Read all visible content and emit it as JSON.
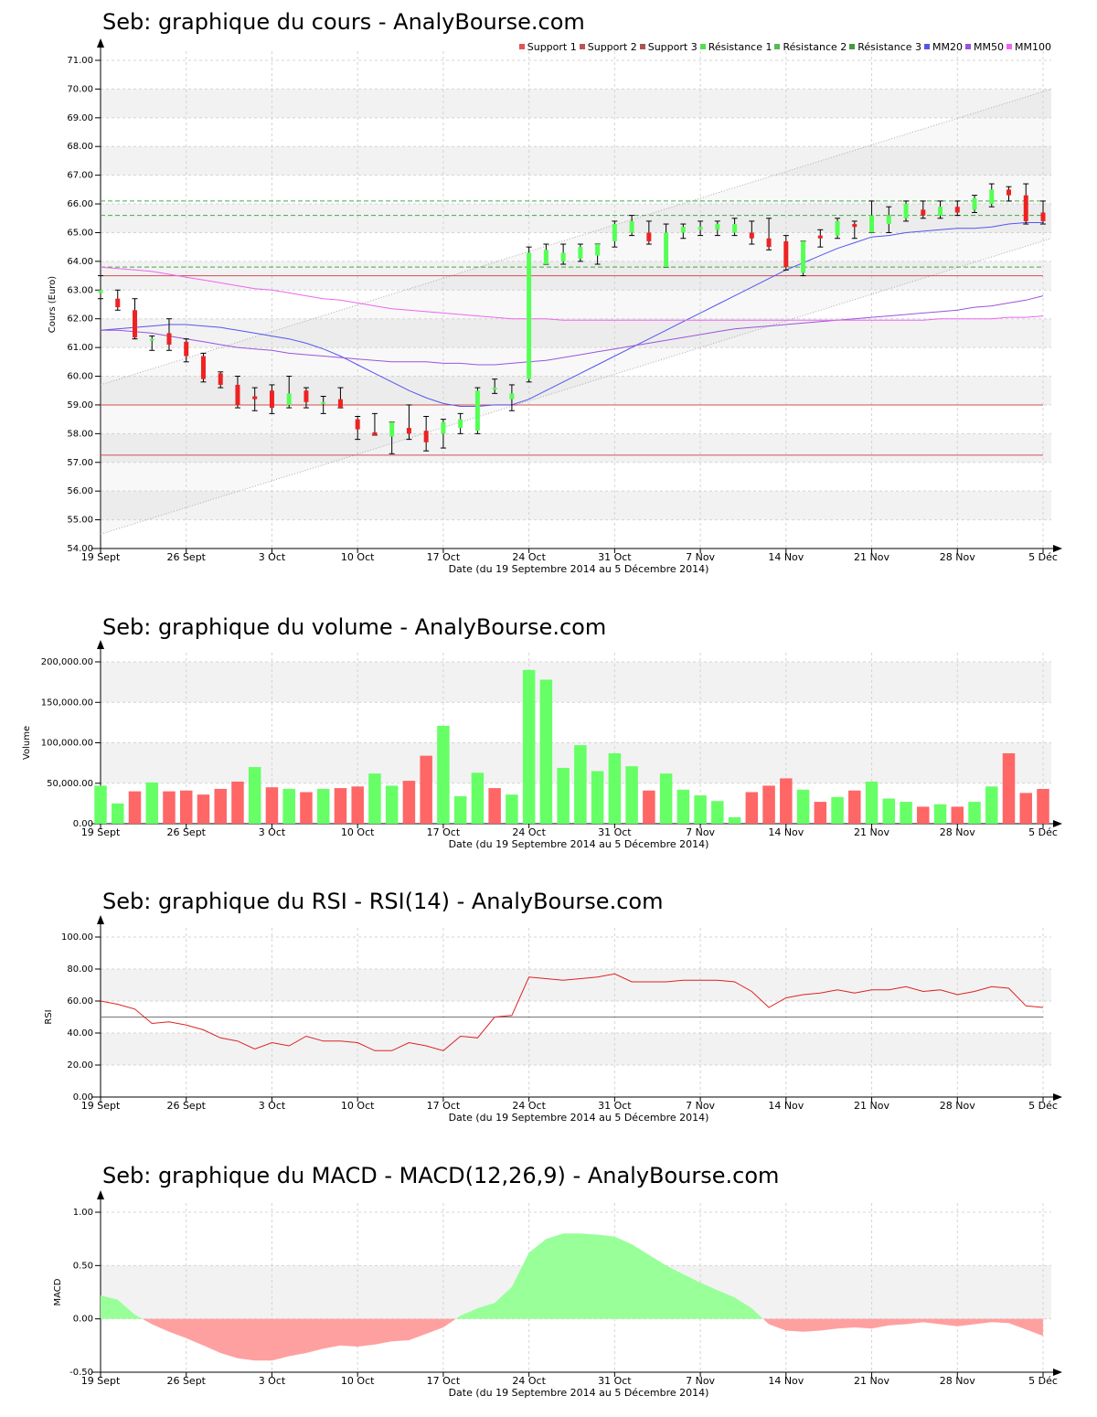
{
  "colors": {
    "up": "#55ff55",
    "down": "#ee2222",
    "up_bar": "#66ff66",
    "down_bar": "#ff6666",
    "band": "#f2f2f2",
    "grid": "#d4d4d4",
    "mm20": "#5555ee",
    "mm50": "#9955dd",
    "mm100": "#ee66ee",
    "support": "#d05050",
    "resistance": "#44aa44",
    "rsi": "#dd2222",
    "macd_pos": "#99ff99",
    "macd_neg": "#ffa0a0",
    "channel": "#aaaaaa"
  },
  "price": {
    "title": "Seb: graphique du cours - AnalyBourse.com",
    "legend": [
      {
        "label": "Support 1",
        "color": "#e05555"
      },
      {
        "label": "Support 2",
        "color": "#bb5555"
      },
      {
        "label": "Support 3",
        "color": "#aa5555"
      },
      {
        "label": "Résistance 1",
        "color": "#55dd55"
      },
      {
        "label": "Résistance 2",
        "color": "#55bb55"
      },
      {
        "label": "Résistance 3",
        "color": "#449944"
      },
      {
        "label": "MM20",
        "color": "#5555ee"
      },
      {
        "label": "MM50",
        "color": "#9955dd"
      },
      {
        "label": "MM100",
        "color": "#ee66ee"
      }
    ]
  },
  "volume": {
    "title": "Seb: graphique du volume - AnalyBourse.com"
  },
  "rsi": {
    "title": "Seb: graphique du RSI - RSI(14) - AnalyBourse.com"
  },
  "macd": {
    "title": "Seb: graphique du MACD - MACD(12,26,9) - AnalyBourse.com"
  },
  "chart_data": [
    {
      "type": "candlestick",
      "title": "Seb: graphique du cours - AnalyBourse.com",
      "xlabel": "Date (du 19 Septembre 2014 au 5 Décembre 2014)",
      "ylabel": "Cours (Euro)",
      "ylim": [
        54,
        71
      ],
      "yticks": [
        "54.00",
        "55.00",
        "56.00",
        "57.00",
        "58.00",
        "59.00",
        "60.00",
        "61.00",
        "62.00",
        "63.00",
        "64.00",
        "65.00",
        "66.00",
        "67.00",
        "68.00",
        "69.00",
        "70.00",
        "71.00"
      ],
      "xticks": [
        {
          "index": 0,
          "label": "19 Sept"
        },
        {
          "index": 5,
          "label": "26 Sept"
        },
        {
          "index": 10,
          "label": "3 Oct"
        },
        {
          "index": 15,
          "label": "10 Oct"
        },
        {
          "index": 20,
          "label": "17 Oct"
        },
        {
          "index": 25,
          "label": "24 Oct"
        },
        {
          "index": 30,
          "label": "31 Oct"
        },
        {
          "index": 35,
          "label": "7 Nov"
        },
        {
          "index": 40,
          "label": "14 Nov"
        },
        {
          "index": 45,
          "label": "21 Nov"
        },
        {
          "index": 50,
          "label": "28 Nov"
        },
        {
          "index": 55,
          "label": "5 Déc"
        }
      ],
      "grid": true,
      "legend_position": "top-right",
      "candles": [
        {
          "o": 62.9,
          "h": 63.5,
          "l": 62.7,
          "c": 63.0
        },
        {
          "o": 62.7,
          "h": 63.0,
          "l": 62.3,
          "c": 62.4
        },
        {
          "o": 62.3,
          "h": 62.7,
          "l": 61.3,
          "c": 61.35
        },
        {
          "o": 61.3,
          "h": 61.4,
          "l": 60.9,
          "c": 61.3
        },
        {
          "o": 61.5,
          "h": 62.0,
          "l": 60.9,
          "c": 61.1
        },
        {
          "o": 61.2,
          "h": 61.3,
          "l": 60.5,
          "c": 60.7
        },
        {
          "o": 60.7,
          "h": 60.8,
          "l": 59.8,
          "c": 59.9
        },
        {
          "o": 60.1,
          "h": 60.15,
          "l": 59.6,
          "c": 59.7
        },
        {
          "o": 59.7,
          "h": 60.0,
          "l": 58.9,
          "c": 59.0
        },
        {
          "o": 59.3,
          "h": 59.6,
          "l": 58.8,
          "c": 59.2
        },
        {
          "o": 59.5,
          "h": 59.7,
          "l": 58.7,
          "c": 58.9
        },
        {
          "o": 59.0,
          "h": 60.0,
          "l": 58.9,
          "c": 59.4
        },
        {
          "o": 59.5,
          "h": 59.6,
          "l": 58.9,
          "c": 59.1
        },
        {
          "o": 59.1,
          "h": 59.3,
          "l": 58.7,
          "c": 59.1
        },
        {
          "o": 59.2,
          "h": 59.6,
          "l": 58.9,
          "c": 58.9
        },
        {
          "o": 58.5,
          "h": 58.6,
          "l": 57.8,
          "c": 58.15
        },
        {
          "o": 58.05,
          "h": 58.7,
          "l": 57.95,
          "c": 57.95
        },
        {
          "o": 57.9,
          "h": 58.4,
          "l": 57.3,
          "c": 58.4
        },
        {
          "o": 58.2,
          "h": 59.0,
          "l": 57.8,
          "c": 58.0
        },
        {
          "o": 58.1,
          "h": 58.6,
          "l": 57.4,
          "c": 57.7
        },
        {
          "o": 58.0,
          "h": 58.5,
          "l": 57.5,
          "c": 58.4
        },
        {
          "o": 58.2,
          "h": 58.7,
          "l": 58.0,
          "c": 58.5
        },
        {
          "o": 58.1,
          "h": 59.6,
          "l": 58.0,
          "c": 59.5
        },
        {
          "o": 59.6,
          "h": 59.9,
          "l": 59.4,
          "c": 59.6
        },
        {
          "o": 59.2,
          "h": 59.7,
          "l": 58.8,
          "c": 59.4
        },
        {
          "o": 59.9,
          "h": 64.5,
          "l": 59.8,
          "c": 64.3
        },
        {
          "o": 63.9,
          "h": 64.6,
          "l": 63.9,
          "c": 64.4
        },
        {
          "o": 64.0,
          "h": 64.6,
          "l": 63.9,
          "c": 64.3
        },
        {
          "o": 64.1,
          "h": 64.6,
          "l": 64.0,
          "c": 64.5
        },
        {
          "o": 64.2,
          "h": 64.6,
          "l": 63.9,
          "c": 64.6
        },
        {
          "o": 64.7,
          "h": 65.4,
          "l": 64.5,
          "c": 65.3
        },
        {
          "o": 65.0,
          "h": 65.6,
          "l": 64.9,
          "c": 65.4
        },
        {
          "o": 65.0,
          "h": 65.4,
          "l": 64.6,
          "c": 64.7
        },
        {
          "o": 63.8,
          "h": 65.3,
          "l": 63.8,
          "c": 65.0
        },
        {
          "o": 65.0,
          "h": 65.3,
          "l": 64.8,
          "c": 65.2
        },
        {
          "o": 65.1,
          "h": 65.4,
          "l": 64.9,
          "c": 65.2
        },
        {
          "o": 65.1,
          "h": 65.4,
          "l": 64.9,
          "c": 65.3
        },
        {
          "o": 65.0,
          "h": 65.5,
          "l": 64.9,
          "c": 65.3
        },
        {
          "o": 65.0,
          "h": 65.4,
          "l": 64.6,
          "c": 64.8
        },
        {
          "o": 64.8,
          "h": 65.5,
          "l": 64.4,
          "c": 64.5
        },
        {
          "o": 64.7,
          "h": 64.9,
          "l": 63.7,
          "c": 63.8
        },
        {
          "o": 63.6,
          "h": 64.7,
          "l": 63.5,
          "c": 64.7
        },
        {
          "o": 64.9,
          "h": 65.1,
          "l": 64.5,
          "c": 64.8
        },
        {
          "o": 64.9,
          "h": 65.5,
          "l": 64.8,
          "c": 65.4
        },
        {
          "o": 65.3,
          "h": 65.4,
          "l": 64.8,
          "c": 65.2
        },
        {
          "o": 65.0,
          "h": 66.1,
          "l": 65.0,
          "c": 65.6
        },
        {
          "o": 65.3,
          "h": 65.9,
          "l": 65.0,
          "c": 65.6
        },
        {
          "o": 65.5,
          "h": 66.1,
          "l": 65.4,
          "c": 66.0
        },
        {
          "o": 65.8,
          "h": 66.1,
          "l": 65.5,
          "c": 65.6
        },
        {
          "o": 65.6,
          "h": 66.1,
          "l": 65.5,
          "c": 65.9
        },
        {
          "o": 65.9,
          "h": 66.1,
          "l": 65.6,
          "c": 65.7
        },
        {
          "o": 65.8,
          "h": 66.3,
          "l": 65.7,
          "c": 66.2
        },
        {
          "o": 66.0,
          "h": 66.7,
          "l": 65.9,
          "c": 66.5
        },
        {
          "o": 66.5,
          "h": 66.6,
          "l": 66.1,
          "c": 66.3
        },
        {
          "o": 66.3,
          "h": 66.7,
          "l": 65.3,
          "c": 65.4
        },
        {
          "o": 65.7,
          "h": 66.1,
          "l": 65.3,
          "c": 65.4
        }
      ],
      "support_levels": [
        63.5,
        59.0,
        57.25
      ],
      "resistance_levels": [
        66.1,
        65.6,
        63.8
      ],
      "channel": {
        "upper": [
          59.7,
          70.0
        ],
        "lower": [
          54.5,
          64.8
        ]
      },
      "series": [
        {
          "name": "MM20",
          "values": [
            61.6,
            61.65,
            61.7,
            61.75,
            61.8,
            61.8,
            61.75,
            61.7,
            61.6,
            61.5,
            61.4,
            61.3,
            61.15,
            60.95,
            60.7,
            60.4,
            60.1,
            59.8,
            59.5,
            59.25,
            59.05,
            58.95,
            58.95,
            59.0,
            59.0,
            59.2,
            59.5,
            59.8,
            60.1,
            60.4,
            60.7,
            61.0,
            61.3,
            61.6,
            61.9,
            62.2,
            62.5,
            62.8,
            63.1,
            63.4,
            63.7,
            63.95,
            64.2,
            64.45,
            64.65,
            64.85,
            64.9,
            65.0,
            65.05,
            65.1,
            65.15,
            65.15,
            65.2,
            65.3,
            65.35,
            65.35
          ]
        },
        {
          "name": "MM50",
          "values": [
            61.6,
            61.6,
            61.55,
            61.5,
            61.4,
            61.3,
            61.2,
            61.1,
            61.0,
            60.95,
            60.9,
            60.8,
            60.75,
            60.7,
            60.65,
            60.6,
            60.55,
            60.5,
            60.5,
            60.5,
            60.45,
            60.45,
            60.4,
            60.4,
            60.45,
            60.5,
            60.55,
            60.65,
            60.75,
            60.85,
            60.95,
            61.05,
            61.15,
            61.25,
            61.35,
            61.45,
            61.55,
            61.65,
            61.7,
            61.75,
            61.8,
            61.85,
            61.9,
            61.95,
            62.0,
            62.05,
            62.1,
            62.15,
            62.2,
            62.25,
            62.3,
            62.4,
            62.45,
            62.55,
            62.65,
            62.8
          ]
        },
        {
          "name": "MM100",
          "values": [
            63.8,
            63.75,
            63.7,
            63.65,
            63.55,
            63.45,
            63.35,
            63.25,
            63.15,
            63.05,
            63.0,
            62.9,
            62.8,
            62.7,
            62.65,
            62.55,
            62.45,
            62.35,
            62.3,
            62.25,
            62.2,
            62.15,
            62.1,
            62.05,
            62.0,
            62.0,
            62.0,
            61.95,
            61.95,
            61.95,
            61.95,
            61.95,
            61.95,
            61.95,
            61.95,
            61.95,
            61.95,
            61.95,
            61.95,
            61.95,
            61.95,
            61.95,
            61.95,
            61.95,
            61.95,
            61.95,
            61.95,
            61.95,
            61.95,
            62.0,
            62.0,
            62.0,
            62.0,
            62.05,
            62.05,
            62.1
          ]
        }
      ]
    },
    {
      "type": "bar",
      "title": "Seb: graphique du volume - AnalyBourse.com",
      "xlabel": "Date (du 19 Septembre 2014 au 5 Décembre 2014)",
      "ylabel": "Volume",
      "ylim": [
        0,
        200000
      ],
      "yticks": [
        "0.00",
        "50,000.00",
        "100,000.00",
        "150,000.00",
        "200,000.00"
      ],
      "grid": true,
      "values": [
        47000,
        25000,
        40000,
        51000,
        40000,
        41000,
        36000,
        43000,
        52000,
        70000,
        45000,
        43000,
        39000,
        43000,
        44000,
        46000,
        62000,
        47000,
        53000,
        84000,
        121000,
        34000,
        63000,
        44000,
        36000,
        190000,
        178000,
        69000,
        97000,
        65000,
        87000,
        71000,
        41000,
        62000,
        42000,
        35000,
        28000,
        8000,
        39000,
        47000,
        56000,
        42000,
        27000,
        33000,
        41000,
        52000,
        31000,
        27000,
        21000,
        24000,
        21000,
        27000,
        46000,
        87000,
        38000,
        43000
      ],
      "direction": [
        "up",
        "up",
        "down",
        "up",
        "down",
        "down",
        "down",
        "down",
        "down",
        "up",
        "down",
        "up",
        "down",
        "up",
        "down",
        "down",
        "up",
        "up",
        "down",
        "down",
        "up",
        "up",
        "up",
        "down",
        "up",
        "up",
        "up",
        "up",
        "up",
        "up",
        "up",
        "up",
        "down",
        "up",
        "up",
        "up",
        "up",
        "up",
        "down",
        "down",
        "down",
        "up",
        "down",
        "up",
        "down",
        "up",
        "up",
        "up",
        "down",
        "up",
        "down",
        "up",
        "up",
        "down",
        "down",
        "down"
      ]
    },
    {
      "type": "line",
      "title": "Seb: graphique du RSI - RSI(14) - AnalyBourse.com",
      "xlabel": "Date (du 19 Septembre 2014 au 5 Décembre 2014)",
      "ylabel": "RSI",
      "ylim": [
        0,
        100
      ],
      "yticks": [
        "0.00",
        "20.00",
        "40.00",
        "60.00",
        "80.00",
        "100.00"
      ],
      "reference_line": 50,
      "grid": true,
      "values": [
        60,
        58,
        55,
        46,
        47,
        45,
        42,
        37,
        35,
        30,
        34,
        32,
        38,
        35,
        35,
        34,
        29,
        29,
        34,
        32,
        29,
        38,
        37,
        50,
        51,
        75,
        74,
        73,
        74,
        75,
        77,
        72,
        72,
        72,
        73,
        73,
        73,
        72,
        66,
        56,
        62,
        64,
        65,
        67,
        65,
        67,
        67,
        69,
        66,
        67,
        64,
        66,
        69,
        68,
        57,
        56
      ]
    },
    {
      "type": "area",
      "title": "Seb: graphique du MACD - MACD(12,26,9) - AnalyBourse.com",
      "xlabel": "Date (du 19 Septembre 2014 au 5 Décembre 2014)",
      "ylabel": "MACD",
      "ylim": [
        -0.5,
        1.0
      ],
      "yticks": [
        "-0.50",
        "0.00",
        "0.50",
        "1.00"
      ],
      "grid": true,
      "values": [
        0.22,
        0.18,
        0.04,
        -0.05,
        -0.12,
        -0.18,
        -0.25,
        -0.32,
        -0.37,
        -0.39,
        -0.39,
        -0.35,
        -0.32,
        -0.28,
        -0.25,
        -0.26,
        -0.24,
        -0.21,
        -0.2,
        -0.14,
        -0.08,
        0.03,
        0.1,
        0.15,
        0.3,
        0.62,
        0.75,
        0.8,
        0.8,
        0.79,
        0.77,
        0.7,
        0.6,
        0.5,
        0.42,
        0.34,
        0.27,
        0.2,
        0.1,
        -0.05,
        -0.11,
        -0.12,
        -0.11,
        -0.09,
        -0.08,
        -0.09,
        -0.06,
        -0.05,
        -0.03,
        -0.05,
        -0.07,
        -0.05,
        -0.03,
        -0.04,
        -0.1,
        -0.16
      ]
    }
  ]
}
